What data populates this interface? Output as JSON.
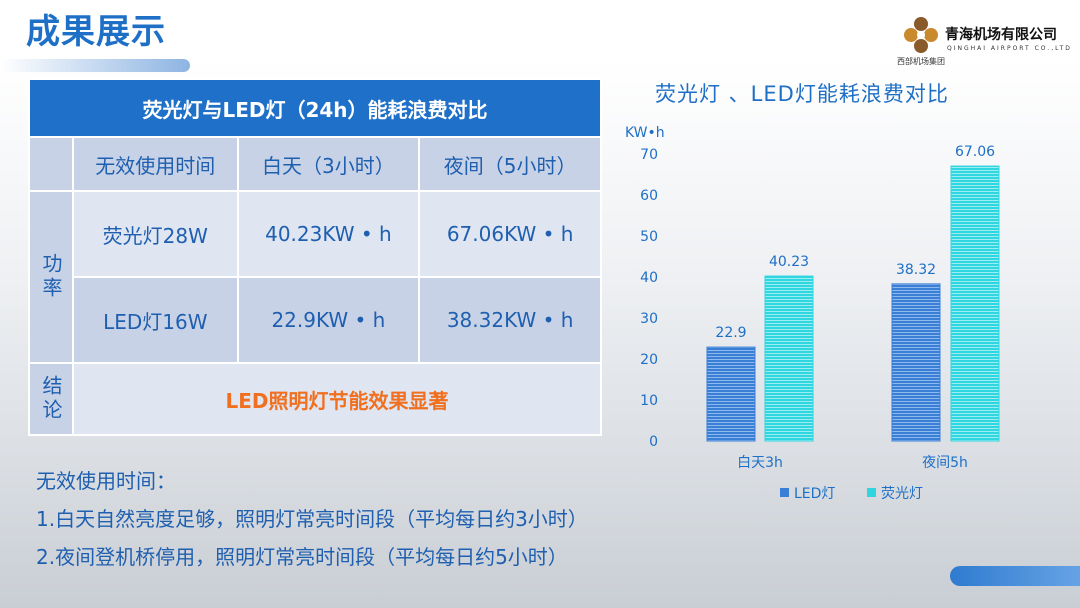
{
  "title": "成果展示",
  "logo": {
    "cn": "青海机场有限公司",
    "en": "QINGHAI AIRPORT CO.,LTD",
    "group": "西部机场集团"
  },
  "table": {
    "header": "荧光灯与LED灯（24h）能耗浪费对比",
    "columns": [
      "无效使用时间",
      "白天（3小时）",
      "夜间（5小时）"
    ],
    "row_group_label": "功率",
    "rows": [
      {
        "label": "荧光灯28W",
        "day": "40.23KW • h",
        "night": "67.06KW • h"
      },
      {
        "label": "LED灯16W",
        "day": "22.9KW • h",
        "night": "38.32KW • h"
      }
    ],
    "conclusion_label": "结论",
    "conclusion": "LED照明灯节能效果显著"
  },
  "notes": {
    "heading": "无效使用时间：",
    "items": [
      "1.白天自然亮度足够，照明灯常亮时间段（平均每日约3小时）",
      "2.夜间登机桥停用，照明灯常亮时间段（平均每日约5小时）"
    ]
  },
  "chart_data": {
    "type": "bar",
    "title": "荧光灯 、LED灯能耗浪费对比",
    "ylabel": "KW•h",
    "ylim": [
      0,
      70
    ],
    "yticks": [
      0,
      10,
      20,
      30,
      40,
      50,
      60,
      70
    ],
    "categories": [
      "白天3h",
      "夜间5h"
    ],
    "series": [
      {
        "name": "LED灯",
        "values": [
          22.9,
          38.32
        ],
        "color": "#3a7fd6"
      },
      {
        "name": "荧光灯",
        "values": [
          40.23,
          67.06
        ],
        "color": "#2fd6e0"
      }
    ],
    "grid": false,
    "legend": "bottom"
  }
}
